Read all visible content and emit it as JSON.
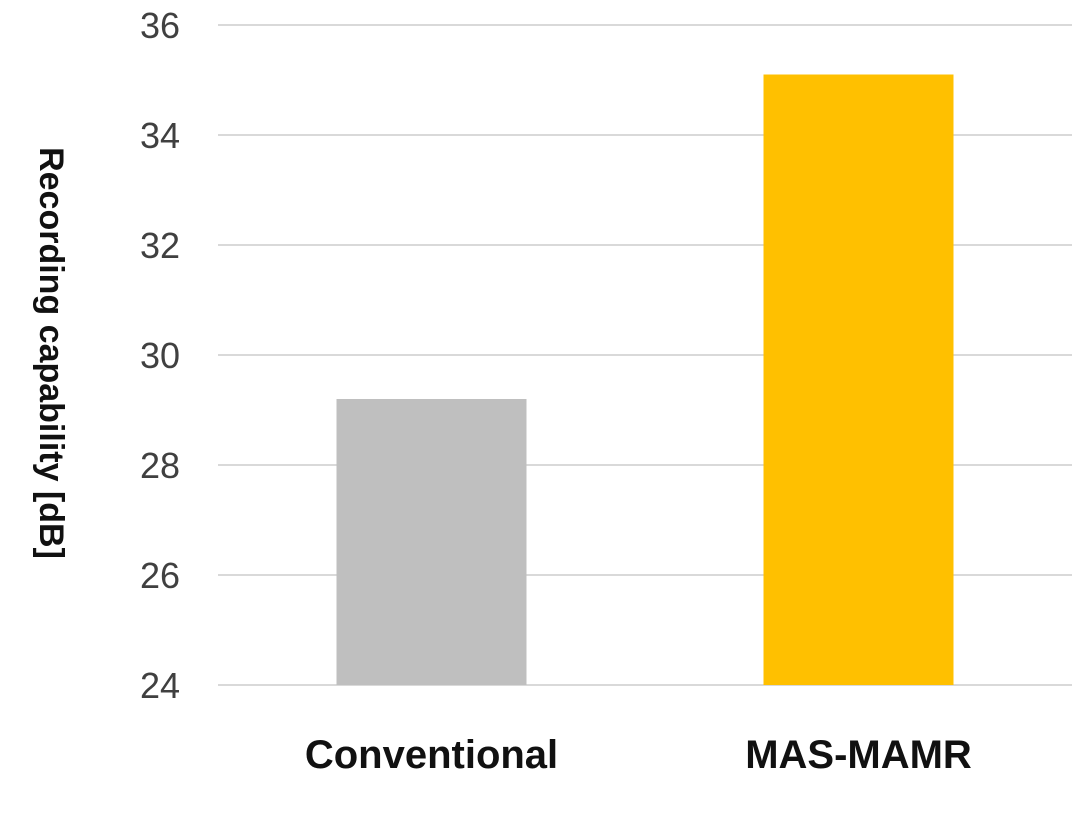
{
  "chart_data": {
    "type": "bar",
    "title": "",
    "xlabel": "",
    "ylabel": "Recording capability [dB]",
    "categories": [
      "Conventional",
      "MAS-MAMR"
    ],
    "values": [
      29.2,
      35.1
    ],
    "bar_colors": [
      "#bfbfbf",
      "#ffc000"
    ],
    "ylim": [
      24,
      36
    ],
    "yticks": [
      24,
      26,
      28,
      30,
      32,
      34,
      36
    ],
    "grid": true,
    "legend": "none"
  }
}
